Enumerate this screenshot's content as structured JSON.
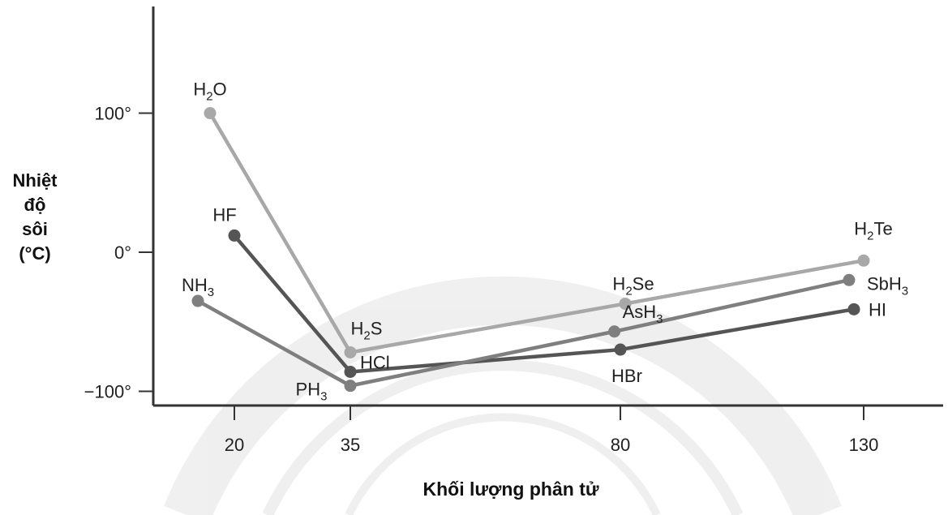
{
  "chart_data": {
    "type": "line",
    "title": "",
    "xlabel": "Khối lượng phân tử",
    "ylabel_lines": [
      "Nhiệt",
      "độ",
      "sôi",
      "(°C)"
    ],
    "x_ticks": [
      {
        "value": 20,
        "label": "20"
      },
      {
        "value": 35,
        "label": "35"
      },
      {
        "value": 80,
        "label": "80"
      },
      {
        "value": 130,
        "label": "130"
      }
    ],
    "y_ticks": [
      {
        "value": 100,
        "label": "100°"
      },
      {
        "value": 0,
        "label": "0°"
      },
      {
        "value": -100,
        "label": "−100°"
      }
    ],
    "series": [
      {
        "color": "#a8a8a8",
        "points": [
          {
            "x": 18,
            "y": 100,
            "label": "H",
            "sub": "2",
            "rest": "O"
          },
          {
            "x": 35,
            "y": -72,
            "label": "H",
            "sub": "2",
            "rest": "S"
          },
          {
            "x": 81,
            "y": -37,
            "label": "H",
            "sub": "2",
            "rest": "Se"
          },
          {
            "x": 130,
            "y": -6,
            "label": "H",
            "sub": "2",
            "rest": "Te"
          }
        ]
      },
      {
        "color": "#555555",
        "points": [
          {
            "x": 20,
            "y": 12,
            "label": "HF",
            "sub": "",
            "rest": ""
          },
          {
            "x": 35,
            "y": -86,
            "label": "HCl",
            "sub": "",
            "rest": ""
          },
          {
            "x": 80,
            "y": -70,
            "label": "HBr",
            "sub": "",
            "rest": ""
          },
          {
            "x": 128,
            "y": -41,
            "label": "HI",
            "sub": "",
            "rest": ""
          }
        ]
      },
      {
        "color": "#7f7f7f",
        "points": [
          {
            "x": 17,
            "y": -35,
            "label": "NH",
            "sub": "3",
            "rest": ""
          },
          {
            "x": 35,
            "y": -96,
            "label": "PH",
            "sub": "3",
            "rest": ""
          },
          {
            "x": 79,
            "y": -57,
            "label": "AsH",
            "sub": "3",
            "rest": ""
          },
          {
            "x": 127,
            "y": -20,
            "label": "SbH",
            "sub": "3",
            "rest": ""
          }
        ]
      }
    ]
  }
}
